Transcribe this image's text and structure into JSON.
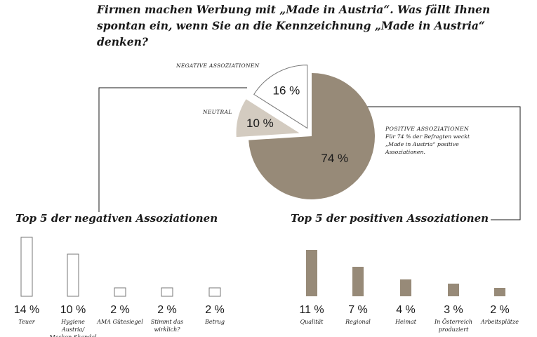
{
  "title": "Firmen machen Werbung mit „Made in Austria“. Was fällt Ihnen spontan ein, wenn Sie an die Kennzeichnung „Made in Austria“ denken?",
  "colors": {
    "positive": "#978a78",
    "neutral": "#d3cbc0",
    "negative": "#ffffff",
    "outline": "#777777",
    "ink": "#1a1a1a"
  },
  "pie": {
    "slices": [
      {
        "label": "POSITIVE ASSOZIATIONEN",
        "value": 74,
        "value_label": "74 %",
        "note": "Für 74 % der Befragten weckt „Made in Austria“ positive Assoziationen."
      },
      {
        "label": "NEUTRAL",
        "value": 10,
        "value_label": "10 %"
      },
      {
        "label": "NEGATIVE ASSOZIATIONEN",
        "value": 16,
        "value_label": "16 %"
      }
    ]
  },
  "negative_section": {
    "title": "Top 5 der negativen Assoziationen"
  },
  "positive_section": {
    "title": "Top 5 der positiven Assoziationen"
  },
  "chart_data": [
    {
      "type": "pie",
      "title": "Firmen machen Werbung mit „Made in Austria“. Was fällt Ihnen spontan ein, wenn Sie an die Kennzeichnung „Made in Austria“ denken?",
      "categories": [
        "POSITIVE ASSOZIATIONEN",
        "NEUTRAL",
        "NEGATIVE ASSOZIATIONEN"
      ],
      "values": [
        74,
        10,
        16
      ]
    },
    {
      "type": "bar",
      "title": "Top 5 der negativen Assoziationen",
      "categories": [
        "Teuer",
        "Hygiene Austria/ Masken-Skandal",
        "AMA Gütesiegel",
        "Stimmt das wirklich?",
        "Betrug"
      ],
      "values": [
        14,
        10,
        2,
        2,
        2
      ],
      "value_labels": [
        "14 %",
        "10 %",
        "2 %",
        "2 %",
        "2 %"
      ],
      "ylim": [
        0,
        14
      ]
    },
    {
      "type": "bar",
      "title": "Top 5 der positiven Assoziationen",
      "categories": [
        "Qualität",
        "Regional",
        "Heimat",
        "In Österreich produziert",
        "Arbeitsplätze"
      ],
      "values": [
        11,
        7,
        4,
        3,
        2
      ],
      "value_labels": [
        "11 %",
        "7 %",
        "4 %",
        "3 %",
        "2 %"
      ],
      "ylim": [
        0,
        14
      ]
    }
  ]
}
